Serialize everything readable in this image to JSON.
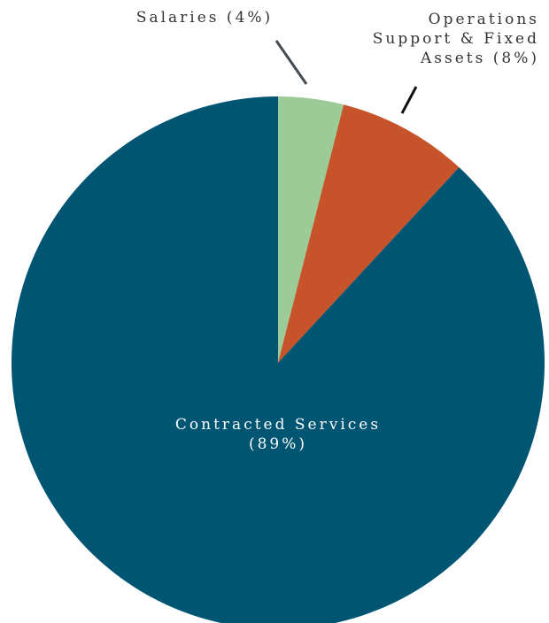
{
  "chart_data": {
    "type": "pie",
    "start_angle_deg": 0,
    "direction": "clockwise",
    "slices": [
      {
        "name": "Salaries",
        "value": 4,
        "color": "#9ccb97",
        "label_lines": [
          "Salaries (4%)"
        ]
      },
      {
        "name": "Operations Support & Fixed Assets",
        "value": 8,
        "color": "#c6532a",
        "label_lines": [
          "Operations",
          "Support & Fixed",
          "Assets (8%)"
        ]
      },
      {
        "name": "Contracted Services",
        "value": 89,
        "color": "#005573",
        "label_lines": [
          "Contracted Services",
          "(89%)"
        ]
      }
    ],
    "label_colors": {
      "outside": "#333333",
      "inside": "#ffffff"
    },
    "leader_line_colors": [
      "#444b52",
      "#111111"
    ]
  }
}
